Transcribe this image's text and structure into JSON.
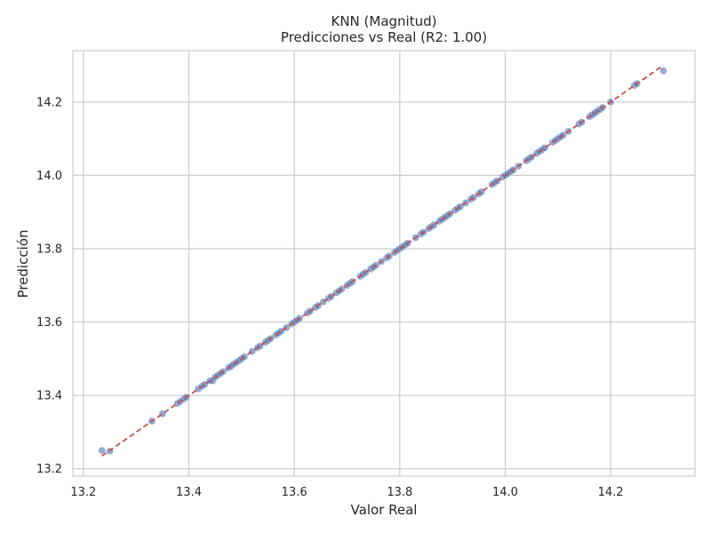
{
  "chart_data": {
    "type": "scatter",
    "title": "KNN (Magnitud)",
    "subtitle": "Predicciones vs Real (R2: 1.00)",
    "xlabel": "Valor Real",
    "ylabel": "Predicción",
    "xlim": [
      13.18,
      14.36
    ],
    "ylim": [
      13.18,
      14.34
    ],
    "xticks": [
      13.2,
      13.4,
      13.6,
      13.8,
      14.0,
      14.2
    ],
    "yticks": [
      13.2,
      13.4,
      13.6,
      13.8,
      14.0,
      14.2
    ],
    "xtick_labels": [
      "13.2",
      "13.4",
      "13.6",
      "13.8",
      "14.0",
      "14.2"
    ],
    "ytick_labels": [
      "13.2",
      "13.4",
      "13.6",
      "13.8",
      "14.0",
      "14.2"
    ],
    "grid": true,
    "point_color": "#4c72b0",
    "line_color": "#c44e52",
    "reference_line": {
      "x": [
        13.235,
        14.3
      ],
      "y": [
        13.235,
        14.3
      ]
    },
    "points": [
      [
        13.235,
        13.25
      ],
      [
        13.25,
        13.248
      ],
      [
        13.33,
        13.33
      ],
      [
        13.35,
        13.35
      ],
      [
        13.378,
        13.378
      ],
      [
        13.383,
        13.383
      ],
      [
        13.39,
        13.39
      ],
      [
        13.395,
        13.395
      ],
      [
        13.418,
        13.418
      ],
      [
        13.425,
        13.425
      ],
      [
        13.43,
        13.43
      ],
      [
        13.44,
        13.44
      ],
      [
        13.445,
        13.44
      ],
      [
        13.45,
        13.45
      ],
      [
        13.455,
        13.455
      ],
      [
        13.46,
        13.46
      ],
      [
        13.465,
        13.465
      ],
      [
        13.475,
        13.475
      ],
      [
        13.48,
        13.48
      ],
      [
        13.485,
        13.485
      ],
      [
        13.49,
        13.49
      ],
      [
        13.495,
        13.495
      ],
      [
        13.5,
        13.5
      ],
      [
        13.505,
        13.505
      ],
      [
        13.52,
        13.52
      ],
      [
        13.53,
        13.53
      ],
      [
        13.535,
        13.535
      ],
      [
        13.545,
        13.545
      ],
      [
        13.55,
        13.55
      ],
      [
        13.555,
        13.555
      ],
      [
        13.565,
        13.565
      ],
      [
        13.57,
        13.57
      ],
      [
        13.575,
        13.575
      ],
      [
        13.585,
        13.585
      ],
      [
        13.595,
        13.595
      ],
      [
        13.6,
        13.6
      ],
      [
        13.605,
        13.605
      ],
      [
        13.61,
        13.61
      ],
      [
        13.625,
        13.625
      ],
      [
        13.63,
        13.63
      ],
      [
        13.64,
        13.64
      ],
      [
        13.645,
        13.645
      ],
      [
        13.655,
        13.655
      ],
      [
        13.665,
        13.665
      ],
      [
        13.67,
        13.67
      ],
      [
        13.68,
        13.68
      ],
      [
        13.685,
        13.685
      ],
      [
        13.69,
        13.69
      ],
      [
        13.7,
        13.7
      ],
      [
        13.705,
        13.705
      ],
      [
        13.71,
        13.71
      ],
      [
        13.725,
        13.725
      ],
      [
        13.73,
        13.73
      ],
      [
        13.735,
        13.735
      ],
      [
        13.745,
        13.745
      ],
      [
        13.75,
        13.75
      ],
      [
        13.755,
        13.755
      ],
      [
        13.765,
        13.765
      ],
      [
        13.775,
        13.775
      ],
      [
        13.78,
        13.78
      ],
      [
        13.79,
        13.79
      ],
      [
        13.795,
        13.795
      ],
      [
        13.8,
        13.8
      ],
      [
        13.805,
        13.805
      ],
      [
        13.81,
        13.81
      ],
      [
        13.815,
        13.815
      ],
      [
        13.83,
        13.83
      ],
      [
        13.84,
        13.84
      ],
      [
        13.845,
        13.845
      ],
      [
        13.855,
        13.855
      ],
      [
        13.86,
        13.86
      ],
      [
        13.865,
        13.865
      ],
      [
        13.875,
        13.875
      ],
      [
        13.88,
        13.88
      ],
      [
        13.885,
        13.885
      ],
      [
        13.89,
        13.89
      ],
      [
        13.895,
        13.895
      ],
      [
        13.905,
        13.905
      ],
      [
        13.91,
        13.91
      ],
      [
        13.915,
        13.915
      ],
      [
        13.925,
        13.925
      ],
      [
        13.935,
        13.935
      ],
      [
        13.94,
        13.94
      ],
      [
        13.95,
        13.95
      ],
      [
        13.955,
        13.955
      ],
      [
        13.975,
        13.975
      ],
      [
        13.98,
        13.98
      ],
      [
        13.985,
        13.985
      ],
      [
        13.995,
        13.995
      ],
      [
        14.0,
        14.0
      ],
      [
        14.005,
        14.005
      ],
      [
        14.01,
        14.01
      ],
      [
        14.015,
        14.015
      ],
      [
        14.025,
        14.025
      ],
      [
        14.04,
        14.04
      ],
      [
        14.045,
        14.045
      ],
      [
        14.05,
        14.05
      ],
      [
        14.06,
        14.06
      ],
      [
        14.065,
        14.065
      ],
      [
        14.07,
        14.07
      ],
      [
        14.075,
        14.075
      ],
      [
        14.09,
        14.09
      ],
      [
        14.095,
        14.095
      ],
      [
        14.1,
        14.1
      ],
      [
        14.105,
        14.105
      ],
      [
        14.11,
        14.11
      ],
      [
        14.12,
        14.12
      ],
      [
        14.14,
        14.14
      ],
      [
        14.145,
        14.145
      ],
      [
        14.16,
        14.16
      ],
      [
        14.165,
        14.165
      ],
      [
        14.17,
        14.17
      ],
      [
        14.175,
        14.175
      ],
      [
        14.18,
        14.18
      ],
      [
        14.185,
        14.185
      ],
      [
        14.2,
        14.2
      ],
      [
        14.245,
        14.245
      ],
      [
        14.25,
        14.25
      ],
      [
        14.3,
        14.285
      ]
    ]
  }
}
